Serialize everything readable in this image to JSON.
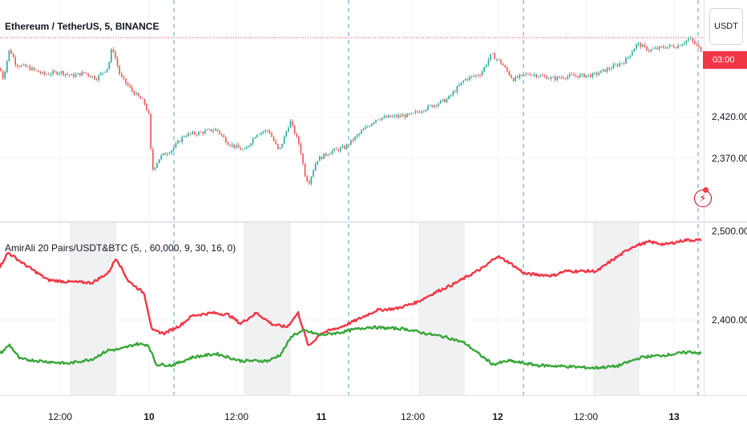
{
  "header": {
    "title": "Ethereum / TetherUS, 5, BINANCE"
  },
  "currency_button": {
    "label": "USDT"
  },
  "price_tag": {
    "label": "03:00"
  },
  "indicator": {
    "title": "AmirAli 20 Pairs/USDT&BTC (5, , 60,000, 9, 30, 16, 0)"
  },
  "colors": {
    "up": "#26a69a",
    "down": "#ef5350",
    "usdt_line": "#f23645",
    "btc_line": "#3aa63a",
    "grid": "#f0f3fa",
    "shade": "#f0f1f3"
  },
  "chart_data": [
    {
      "type": "candlestick",
      "title": "Ethereum / TetherUS, 5, BINANCE",
      "y_ticks": [
        "2,370.00",
        "2,420.00"
      ],
      "x_ticks": [
        "12:00",
        "10",
        "12:00",
        "11",
        "12:00",
        "12",
        "12:00",
        "13"
      ],
      "series": [
        {
          "points": [
            [
              0,
              2478
            ],
            [
              4,
              2466
            ],
            [
              12,
              2502
            ],
            [
              20,
              2483
            ],
            [
              35,
              2479
            ],
            [
              55,
              2471
            ],
            [
              75,
              2474
            ],
            [
              90,
              2469
            ],
            [
              105,
              2473
            ],
            [
              120,
              2466
            ],
            [
              135,
              2480
            ],
            [
              140,
              2505
            ],
            [
              150,
              2469
            ],
            [
              165,
              2451
            ],
            [
              180,
              2437
            ],
            [
              187,
              2418
            ],
            [
              189,
              2354
            ],
            [
              200,
              2372
            ],
            [
              215,
              2381
            ],
            [
              230,
              2398
            ],
            [
              250,
              2401
            ],
            [
              270,
              2405
            ],
            [
              285,
              2388
            ],
            [
              305,
              2379
            ],
            [
              320,
              2400
            ],
            [
              335,
              2404
            ],
            [
              348,
              2378
            ],
            [
              362,
              2415
            ],
            [
              374,
              2385
            ],
            [
              380,
              2352
            ],
            [
              385,
              2340
            ],
            [
              395,
              2368
            ],
            [
              412,
              2378
            ],
            [
              430,
              2383
            ],
            [
              452,
              2403
            ],
            [
              470,
              2418
            ],
            [
              490,
              2420
            ],
            [
              512,
              2422
            ],
            [
              535,
              2432
            ],
            [
              558,
              2441
            ],
            [
              580,
              2465
            ],
            [
              600,
              2472
            ],
            [
              613,
              2495
            ],
            [
              625,
              2485
            ],
            [
              640,
              2465
            ],
            [
              660,
              2472
            ],
            [
              690,
              2466
            ],
            [
              710,
              2469
            ],
            [
              740,
              2470
            ],
            [
              760,
              2478
            ],
            [
              780,
              2487
            ],
            [
              795,
              2508
            ],
            [
              810,
              2500
            ],
            [
              830,
              2504
            ],
            [
              845,
              2505
            ],
            [
              860,
              2514
            ],
            [
              875,
              2500
            ]
          ]
        }
      ]
    },
    {
      "type": "line",
      "title": "AmirAli 20 Pairs/USDT&BTC (5, , 60,000, 9, 30, 16, 0)",
      "y_ticks": [
        "2,500.00",
        "2,400.00"
      ],
      "series": [
        {
          "points": [
            [
              0,
              2460
            ],
            [
              10,
              2476
            ],
            [
              30,
              2463
            ],
            [
              60,
              2445
            ],
            [
              85,
              2443
            ],
            [
              115,
              2442
            ],
            [
              135,
              2453
            ],
            [
              145,
              2470
            ],
            [
              160,
              2444
            ],
            [
              180,
              2430
            ],
            [
              190,
              2388
            ],
            [
              205,
              2385
            ],
            [
              225,
              2394
            ],
            [
              240,
              2405
            ],
            [
              265,
              2408
            ],
            [
              285,
              2406
            ],
            [
              300,
              2396
            ],
            [
              320,
              2408
            ],
            [
              340,
              2395
            ],
            [
              358,
              2392
            ],
            [
              372,
              2408
            ],
            [
              385,
              2370
            ],
            [
              400,
              2385
            ],
            [
              425,
              2392
            ],
            [
              445,
              2400
            ],
            [
              470,
              2411
            ],
            [
              495,
              2413
            ],
            [
              520,
              2420
            ],
            [
              545,
              2432
            ],
            [
              565,
              2440
            ],
            [
              585,
              2450
            ],
            [
              605,
              2460
            ],
            [
              620,
              2472
            ],
            [
              635,
              2465
            ],
            [
              655,
              2452
            ],
            [
              690,
              2450
            ],
            [
              705,
              2455
            ],
            [
              745,
              2455
            ],
            [
              760,
              2465
            ],
            [
              790,
              2483
            ],
            [
              810,
              2488
            ],
            [
              830,
              2485
            ],
            [
              855,
              2490
            ],
            [
              875,
              2490
            ]
          ]
        },
        {
          "points": [
            [
              0,
              2362
            ],
            [
              12,
              2372
            ],
            [
              25,
              2356
            ],
            [
              60,
              2353
            ],
            [
              85,
              2351
            ],
            [
              115,
              2356
            ],
            [
              135,
              2366
            ],
            [
              150,
              2367
            ],
            [
              170,
              2373
            ],
            [
              185,
              2372
            ],
            [
              195,
              2350
            ],
            [
              215,
              2349
            ],
            [
              240,
              2358
            ],
            [
              270,
              2362
            ],
            [
              300,
              2354
            ],
            [
              335,
              2354
            ],
            [
              350,
              2361
            ],
            [
              365,
              2383
            ],
            [
              380,
              2388
            ],
            [
              400,
              2383
            ],
            [
              425,
              2386
            ],
            [
              440,
              2389
            ],
            [
              460,
              2392
            ],
            [
              480,
              2391
            ],
            [
              505,
              2390
            ],
            [
              530,
              2385
            ],
            [
              560,
              2380
            ],
            [
              580,
              2374
            ],
            [
              600,
              2360
            ],
            [
              615,
              2350
            ],
            [
              635,
              2354
            ],
            [
              670,
              2349
            ],
            [
              700,
              2348
            ],
            [
              740,
              2346
            ],
            [
              770,
              2348
            ],
            [
              800,
              2358
            ],
            [
              835,
              2361
            ],
            [
              860,
              2364
            ],
            [
              875,
              2363
            ]
          ]
        }
      ]
    }
  ]
}
